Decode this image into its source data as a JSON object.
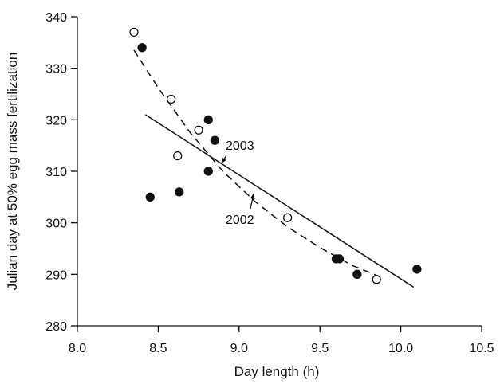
{
  "chart_data": {
    "type": "scatter",
    "title": "",
    "xlabel": "Day length (h)",
    "ylabel": "Julian day at 50% egg mass fertilization",
    "xlim": [
      8.0,
      10.5
    ],
    "ylim": [
      280,
      340
    ],
    "xticks": [
      "8.0",
      "8.5",
      "9.0",
      "9.5",
      "10.0",
      "10.5"
    ],
    "yticks": [
      "280",
      "290",
      "300",
      "310",
      "320",
      "330",
      "340"
    ],
    "grid": false,
    "series": [
      {
        "name": "2002",
        "marker": "filled-circle",
        "color": "#111111",
        "points": [
          [
            8.4,
            334
          ],
          [
            8.45,
            305
          ],
          [
            8.63,
            306
          ],
          [
            8.81,
            320
          ],
          [
            8.81,
            310
          ],
          [
            8.85,
            316
          ],
          [
            9.6,
            293
          ],
          [
            9.62,
            293
          ],
          [
            9.73,
            290
          ],
          [
            10.1,
            291
          ]
        ]
      },
      {
        "name": "2003",
        "marker": "open-circle",
        "color": "#111111",
        "points": [
          [
            8.35,
            337
          ],
          [
            8.58,
            324
          ],
          [
            8.62,
            313
          ],
          [
            8.75,
            318
          ],
          [
            9.3,
            301
          ],
          [
            9.85,
            289
          ]
        ]
      }
    ],
    "fits": [
      {
        "name": "2002",
        "style": "solid",
        "points": [
          [
            8.42,
            321
          ],
          [
            10.08,
            287.5
          ]
        ]
      },
      {
        "name": "2003",
        "style": "dashed",
        "points": [
          [
            8.35,
            333.5
          ],
          [
            8.5,
            326.2
          ],
          [
            8.7,
            317.4
          ],
          [
            8.9,
            310.0
          ],
          [
            9.1,
            304.1
          ],
          [
            9.3,
            299.2
          ],
          [
            9.5,
            295.2
          ],
          [
            9.7,
            291.7
          ],
          [
            9.85,
            289.8
          ]
        ]
      }
    ],
    "annotations": [
      {
        "text": "2003",
        "pointer": [
          8.89,
          311.5
        ]
      },
      {
        "text": "2002",
        "pointer": [
          9.09,
          305.7
        ]
      }
    ]
  }
}
